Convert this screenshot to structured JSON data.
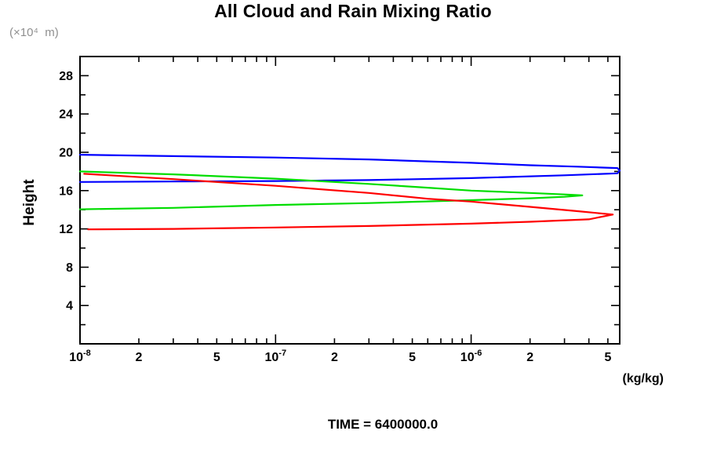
{
  "header": {
    "title": "All Cloud and Rain Mixing Ratio"
  },
  "y_axis": {
    "unit_label": "(×10⁴  m)",
    "axis_label": "Height"
  },
  "x_axis": {
    "unit_label": "(kg/kg)"
  },
  "footer": {
    "time_label": "TIME = 6400000.0"
  },
  "chart_data": {
    "type": "line",
    "title": "All Cloud and Rain Mixing Ratio",
    "xlabel": "(kg/kg)",
    "ylabel": "Height (×10⁴ m)",
    "x_scale": "log",
    "xlim": [
      1e-08,
      5.75e-06
    ],
    "ylim": [
      0,
      30
    ],
    "grid": false,
    "legend": "none",
    "time_annotation": "TIME = 6400000.0",
    "frame_color": "#000000",
    "y_major_ticks": [
      {
        "value": 4,
        "label": "4"
      },
      {
        "value": 8,
        "label": "8"
      },
      {
        "value": 12,
        "label": "12"
      },
      {
        "value": 16,
        "label": "16"
      },
      {
        "value": 20,
        "label": "20"
      },
      {
        "value": 24,
        "label": "24"
      },
      {
        "value": 28,
        "label": "28"
      }
    ],
    "y_minor_ticks": [
      2,
      6,
      10,
      14,
      18,
      22,
      26
    ],
    "x_decade_ticks": [
      {
        "value": 1e-08,
        "base": "10",
        "exp": "-8"
      },
      {
        "value": 1e-07,
        "base": "10",
        "exp": "-7"
      },
      {
        "value": 1e-06,
        "base": "10",
        "exp": "-6"
      }
    ],
    "x_minor_labeled_ticks": [
      {
        "value": 2e-08,
        "label": "2"
      },
      {
        "value": 5e-08,
        "label": "5"
      },
      {
        "value": 2e-07,
        "label": "2"
      },
      {
        "value": 5e-07,
        "label": "5"
      },
      {
        "value": 2e-06,
        "label": "2"
      },
      {
        "value": 5e-06,
        "label": "5"
      }
    ],
    "x_minor_ticks": [
      3e-08,
      4e-08,
      6e-08,
      7e-08,
      8e-08,
      9e-08,
      3e-07,
      4e-07,
      6e-07,
      7e-07,
      8e-07,
      9e-07,
      3e-06,
      4e-06
    ],
    "series": [
      {
        "name": "blue",
        "color": "#0000ff",
        "points": [
          [
            1e-08,
            19.75
          ],
          [
            3e-08,
            19.6
          ],
          [
            1e-07,
            19.45
          ],
          [
            3e-07,
            19.25
          ],
          [
            6e-07,
            19.05
          ],
          [
            1e-06,
            18.9
          ],
          [
            2e-06,
            18.65
          ],
          [
            3.5e-06,
            18.5
          ],
          [
            5.6e-06,
            18.35
          ],
          [
            5.75e-06,
            18.1
          ],
          [
            5.6e-06,
            17.8
          ],
          [
            3e-06,
            17.6
          ],
          [
            1e-06,
            17.3
          ],
          [
            3e-07,
            17.1
          ],
          [
            1e-07,
            17.0
          ],
          [
            3e-08,
            16.95
          ],
          [
            1e-08,
            16.9
          ]
        ]
      },
      {
        "name": "green",
        "color": "#00dd00",
        "points": [
          [
            1e-08,
            18.0
          ],
          [
            3e-08,
            17.7
          ],
          [
            1e-07,
            17.25
          ],
          [
            3e-07,
            16.7
          ],
          [
            6e-07,
            16.3
          ],
          [
            1e-06,
            16.0
          ],
          [
            2e-06,
            15.75
          ],
          [
            3e-06,
            15.6
          ],
          [
            3.7e-06,
            15.5
          ],
          [
            3e-06,
            15.35
          ],
          [
            2e-06,
            15.2
          ],
          [
            1e-06,
            15.0
          ],
          [
            3e-07,
            14.7
          ],
          [
            1e-07,
            14.5
          ],
          [
            3e-08,
            14.2
          ],
          [
            1e-08,
            14.05
          ]
        ]
      },
      {
        "name": "red",
        "color": "#ff0000",
        "points": [
          [
            1.05e-08,
            17.75
          ],
          [
            3e-08,
            17.2
          ],
          [
            1e-07,
            16.5
          ],
          [
            3e-07,
            15.75
          ],
          [
            6e-07,
            15.15
          ],
          [
            1e-06,
            14.85
          ],
          [
            2e-06,
            14.3
          ],
          [
            3.5e-06,
            13.85
          ],
          [
            5.3e-06,
            13.5
          ],
          [
            4e-06,
            13.0
          ],
          [
            2e-06,
            12.75
          ],
          [
            1e-06,
            12.55
          ],
          [
            3e-07,
            12.3
          ],
          [
            1e-07,
            12.15
          ],
          [
            3e-08,
            12.0
          ],
          [
            1.1e-08,
            11.95
          ]
        ]
      }
    ]
  }
}
